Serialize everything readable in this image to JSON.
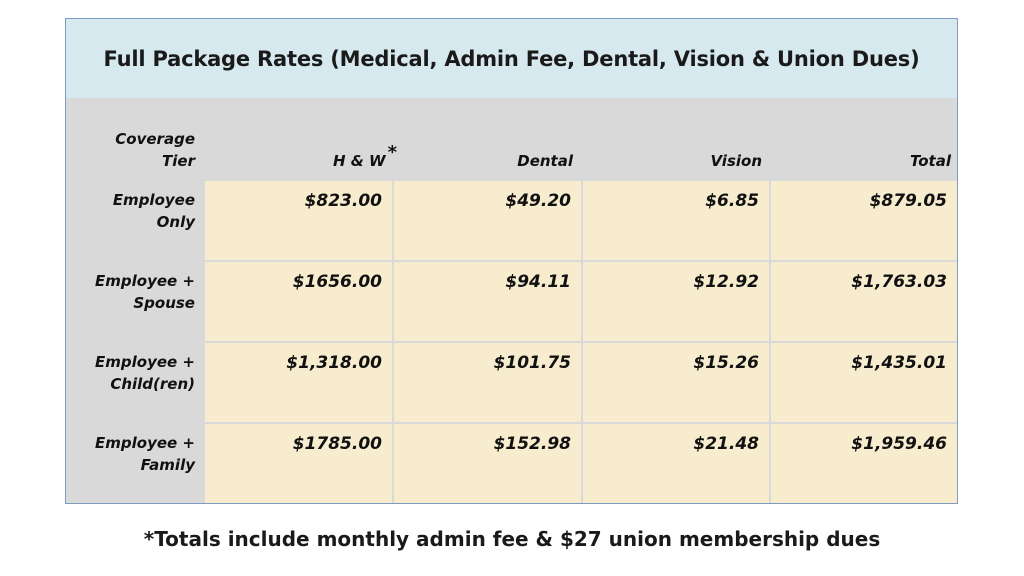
{
  "title": "Full Package Rates (Medical, Admin Fee, Dental, Vision & Union Dues)",
  "headers": {
    "tier_line1": "Coverage",
    "tier_line2": "Tier",
    "hw": "H & W",
    "hw_marker": "*",
    "dental": "Dental",
    "vision": "Vision",
    "total": "Total"
  },
  "rows": [
    {
      "label_line1": "Employee",
      "label_line2": "Only",
      "hw": "$823.00",
      "dental": "$49.20",
      "vision": "$6.85",
      "total": "$879.05"
    },
    {
      "label_line1": "Employee +",
      "label_line2": "Spouse",
      "hw": "$1656.00",
      "dental": "$94.11",
      "vision": "$12.92",
      "total": "$1,763.03"
    },
    {
      "label_line1": "Employee +",
      "label_line2": "Child(ren)",
      "hw": "$1,318.00",
      "dental": "$101.75",
      "vision": "$15.26",
      "total": "$1,435.01"
    },
    {
      "label_line1": "Employee +",
      "label_line2": "Family",
      "hw": "$1785.00",
      "dental": "$152.98",
      "vision": "$21.48",
      "total": "$1,959.46"
    }
  ],
  "footnote": "*Totals include monthly admin fee & $27 union membership dues",
  "colors": {
    "title_bg": "#d5e9ef",
    "cell_bg": "#f7ecce",
    "table_bg": "#d9d9d9"
  }
}
